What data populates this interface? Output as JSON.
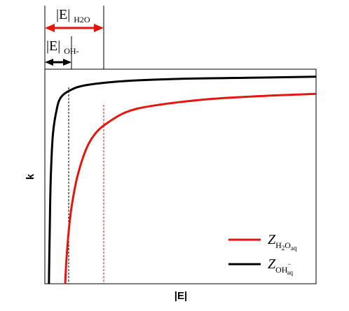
{
  "chart_data": {
    "type": "line",
    "xlabel": "|E|",
    "ylabel": "k",
    "grid": false,
    "legend_position": "bottom-right",
    "series": [
      {
        "name": "Z_H2Oaq",
        "color": "#e8150f",
        "threshold_E": 0.22,
        "x": [
          0.075,
          0.08,
          0.09,
          0.1,
          0.12,
          0.15,
          0.18,
          0.22,
          0.3,
          0.4,
          0.6,
          0.8,
          1.0
        ],
        "y": [
          0.0,
          0.12,
          0.27,
          0.37,
          0.5,
          0.62,
          0.69,
          0.74,
          0.8,
          0.83,
          0.86,
          0.875,
          0.885
        ]
      },
      {
        "name": "Z_OH-aq",
        "color": "#000000",
        "threshold_E": 0.091,
        "x": [
          0.015,
          0.018,
          0.022,
          0.03,
          0.045,
          0.06,
          0.091,
          0.15,
          0.3,
          0.5,
          0.75,
          1.0
        ],
        "y": [
          0.0,
          0.25,
          0.5,
          0.7,
          0.82,
          0.87,
          0.9,
          0.925,
          0.945,
          0.955,
          0.96,
          0.965
        ]
      }
    ],
    "annotations": [
      {
        "label": "|E|H2O",
        "series": "Z_H2Oaq"
      },
      {
        "label": "|E|OH-",
        "series": "Z_OH-aq"
      }
    ]
  },
  "labels": {
    "xlabel": "|E|",
    "ylabel": "k",
    "e_prefix": "|E|",
    "e_h2o_sub": "H2O",
    "e_oh_sub": "OH-",
    "legend_h2o": "Z H2O aq",
    "legend_oh": "Z OH- aq"
  },
  "colors": {
    "h2o": "#e8150f",
    "oh": "#000000"
  }
}
